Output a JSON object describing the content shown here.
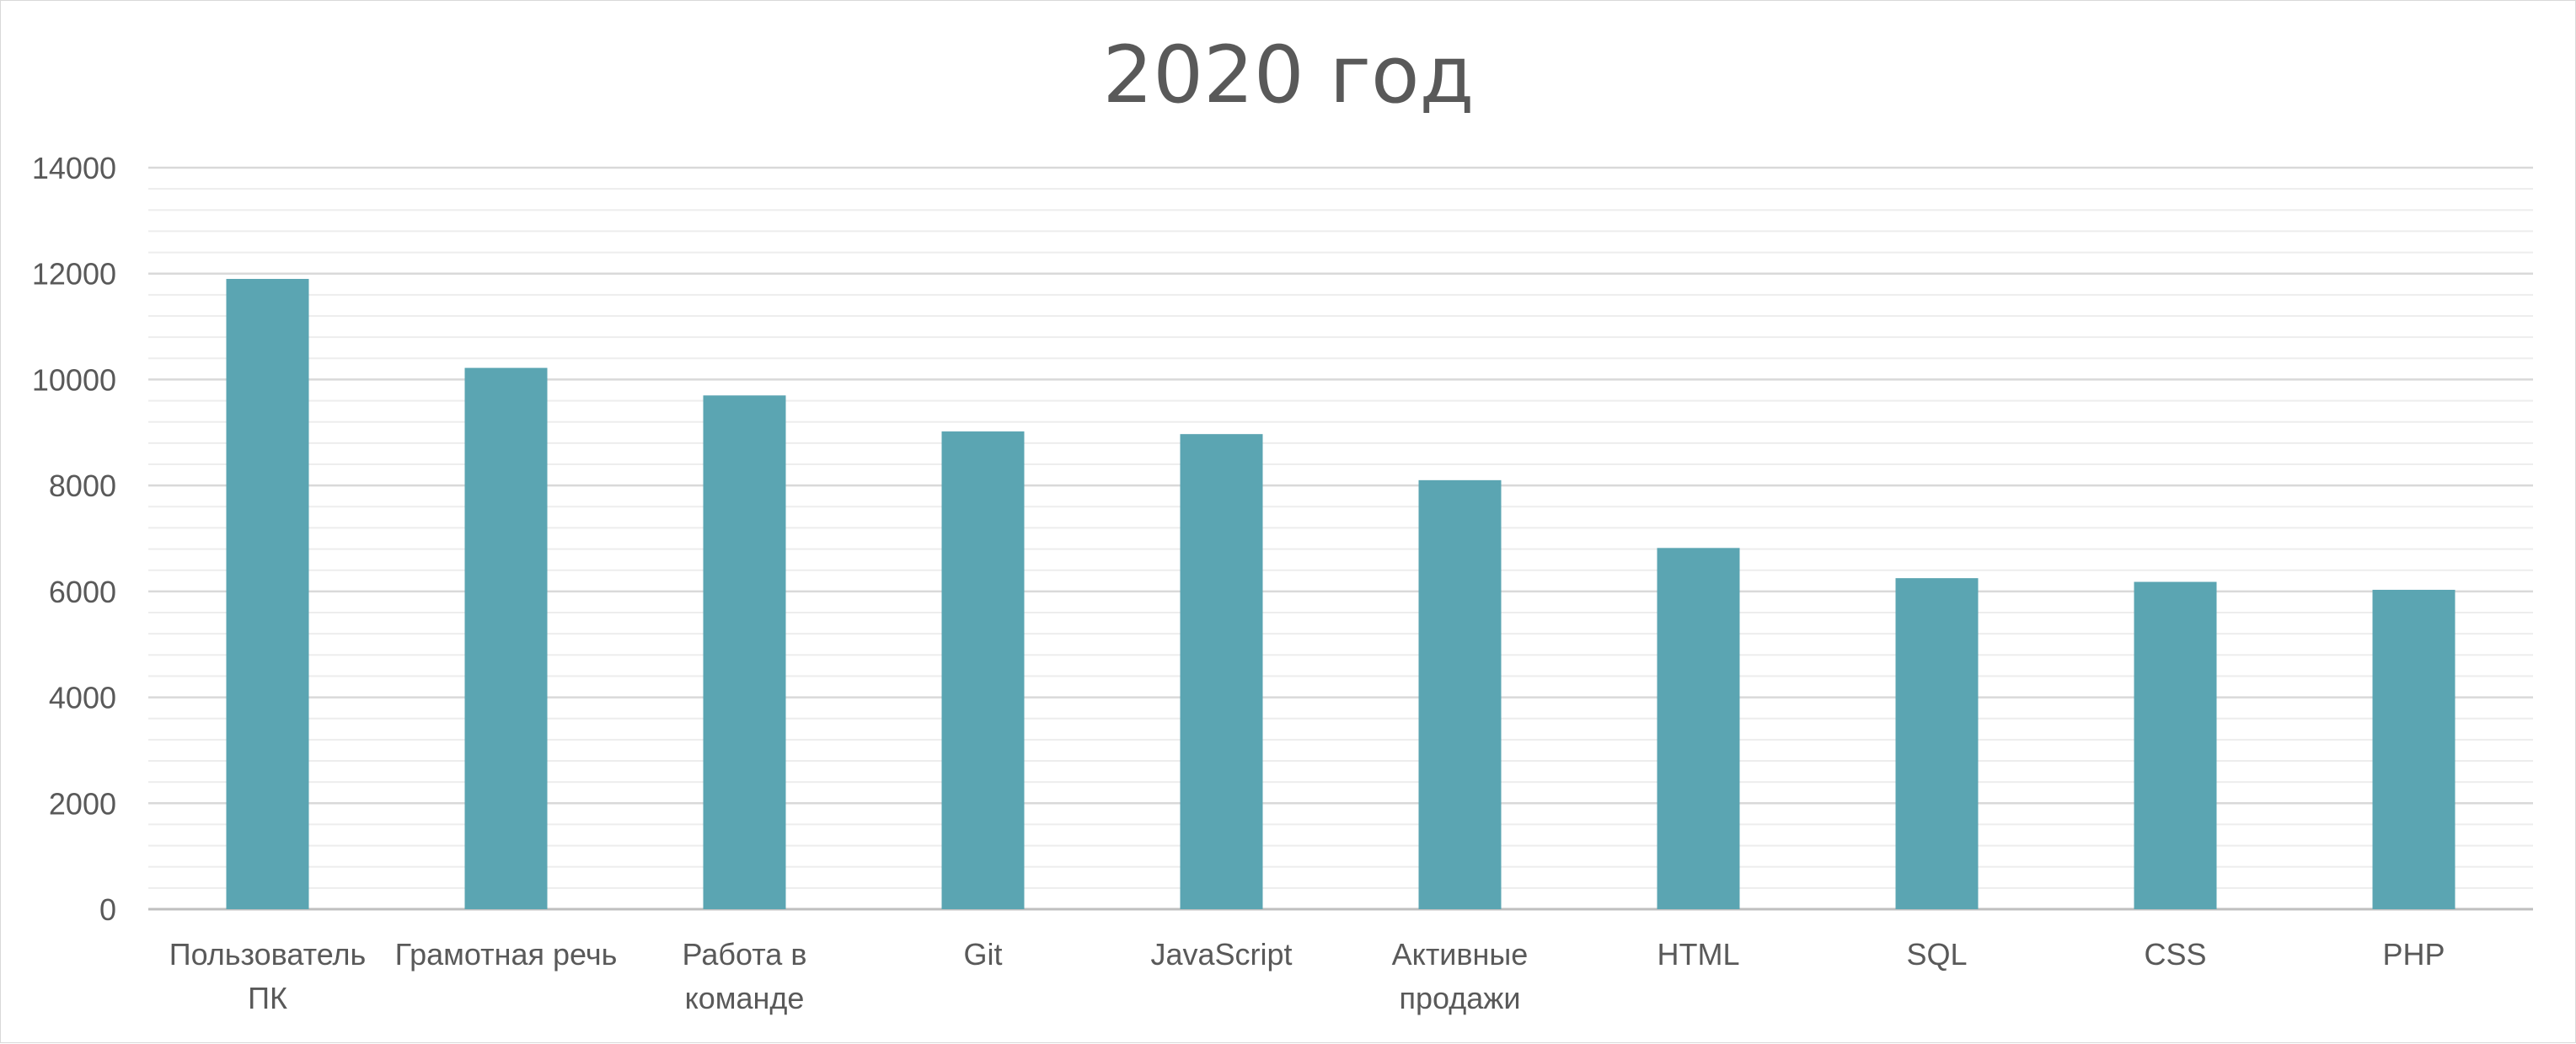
{
  "colors": {
    "bar": "#5ba5b2",
    "major_grid": "#d9d9d9",
    "minor_grid": "#ededed",
    "axis": "#bfbfbf",
    "text": "#595959"
  },
  "chart_data": {
    "type": "bar",
    "title": "2020 год",
    "xlabel": "",
    "ylabel": "",
    "categories": [
      "Пользователь ПК",
      "Грамотная речь",
      "Работа в команде",
      "Git",
      "JavaScript",
      "Активные продажи",
      "HTML",
      "SQL",
      "CSS",
      "PHP"
    ],
    "category_lines": [
      [
        "Пользователь",
        "ПК"
      ],
      [
        "Грамотная речь"
      ],
      [
        "Работа в",
        "команде"
      ],
      [
        "Git"
      ],
      [
        "JavaScript"
      ],
      [
        "Активные",
        "продажи"
      ],
      [
        "HTML"
      ],
      [
        "SQL"
      ],
      [
        "CSS"
      ],
      [
        "PHP"
      ]
    ],
    "values": [
      11900,
      10220,
      9700,
      9020,
      8970,
      8100,
      6820,
      6250,
      6180,
      6030
    ],
    "ylim": [
      0,
      14000
    ],
    "yticks": [
      0,
      2000,
      4000,
      6000,
      8000,
      10000,
      12000,
      14000
    ],
    "ytick_labels": [
      "0",
      "2000",
      "4000",
      "6000",
      "8000",
      "10000",
      "12000",
      "14000"
    ],
    "minor_step": 400,
    "grid": true,
    "legend": "none"
  }
}
